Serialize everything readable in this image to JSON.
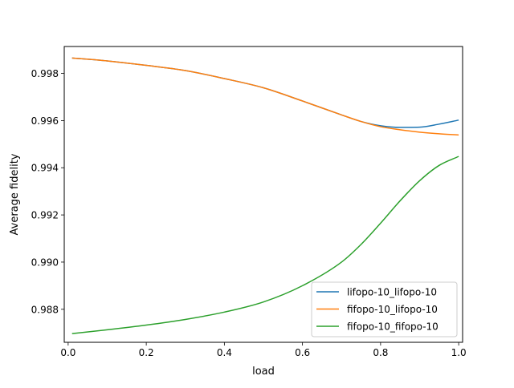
{
  "chart_data": {
    "type": "line",
    "title": "",
    "xlabel": "load",
    "ylabel": "Average fidelity",
    "xlim": [
      -0.01,
      1.01
    ],
    "ylim": [
      0.9866,
      0.99914
    ],
    "xticks": [
      0.0,
      0.2,
      0.4,
      0.6,
      0.8,
      1.0
    ],
    "xtick_labels": [
      "0.0",
      "0.2",
      "0.4",
      "0.6",
      "0.8",
      "1.0"
    ],
    "yticks": [
      0.988,
      0.99,
      0.992,
      0.994,
      0.996,
      0.998
    ],
    "ytick_labels": [
      "0.988",
      "0.990",
      "0.992",
      "0.994",
      "0.996",
      "0.998"
    ],
    "grid": false,
    "legend_position": "lower-right",
    "x": [
      0.01,
      0.1,
      0.2,
      0.3,
      0.4,
      0.5,
      0.6,
      0.7,
      0.75,
      0.8,
      0.85,
      0.9,
      0.95,
      1.0
    ],
    "series": [
      {
        "name": "lifopo-10_lifopo-10",
        "color": "#1f77b4",
        "values": [
          0.99865,
          0.99853,
          0.99834,
          0.99812,
          0.99778,
          0.99739,
          0.99683,
          0.99624,
          0.99596,
          0.99578,
          0.99571,
          0.99572,
          0.99585,
          0.99602
        ]
      },
      {
        "name": "fifopo-10_lifopo-10",
        "color": "#ff7f0e",
        "values": [
          0.99865,
          0.99853,
          0.99834,
          0.99812,
          0.99778,
          0.99739,
          0.99683,
          0.99624,
          0.99596,
          0.99574,
          0.99561,
          0.99551,
          0.99544,
          0.99539
        ]
      },
      {
        "name": "fifopo-10_fifopo-10",
        "color": "#2ca02c",
        "values": [
          0.98697,
          0.98713,
          0.98733,
          0.98757,
          0.98788,
          0.98831,
          0.989,
          0.99,
          0.99075,
          0.99165,
          0.9926,
          0.99345,
          0.9941,
          0.99448
        ]
      }
    ]
  }
}
